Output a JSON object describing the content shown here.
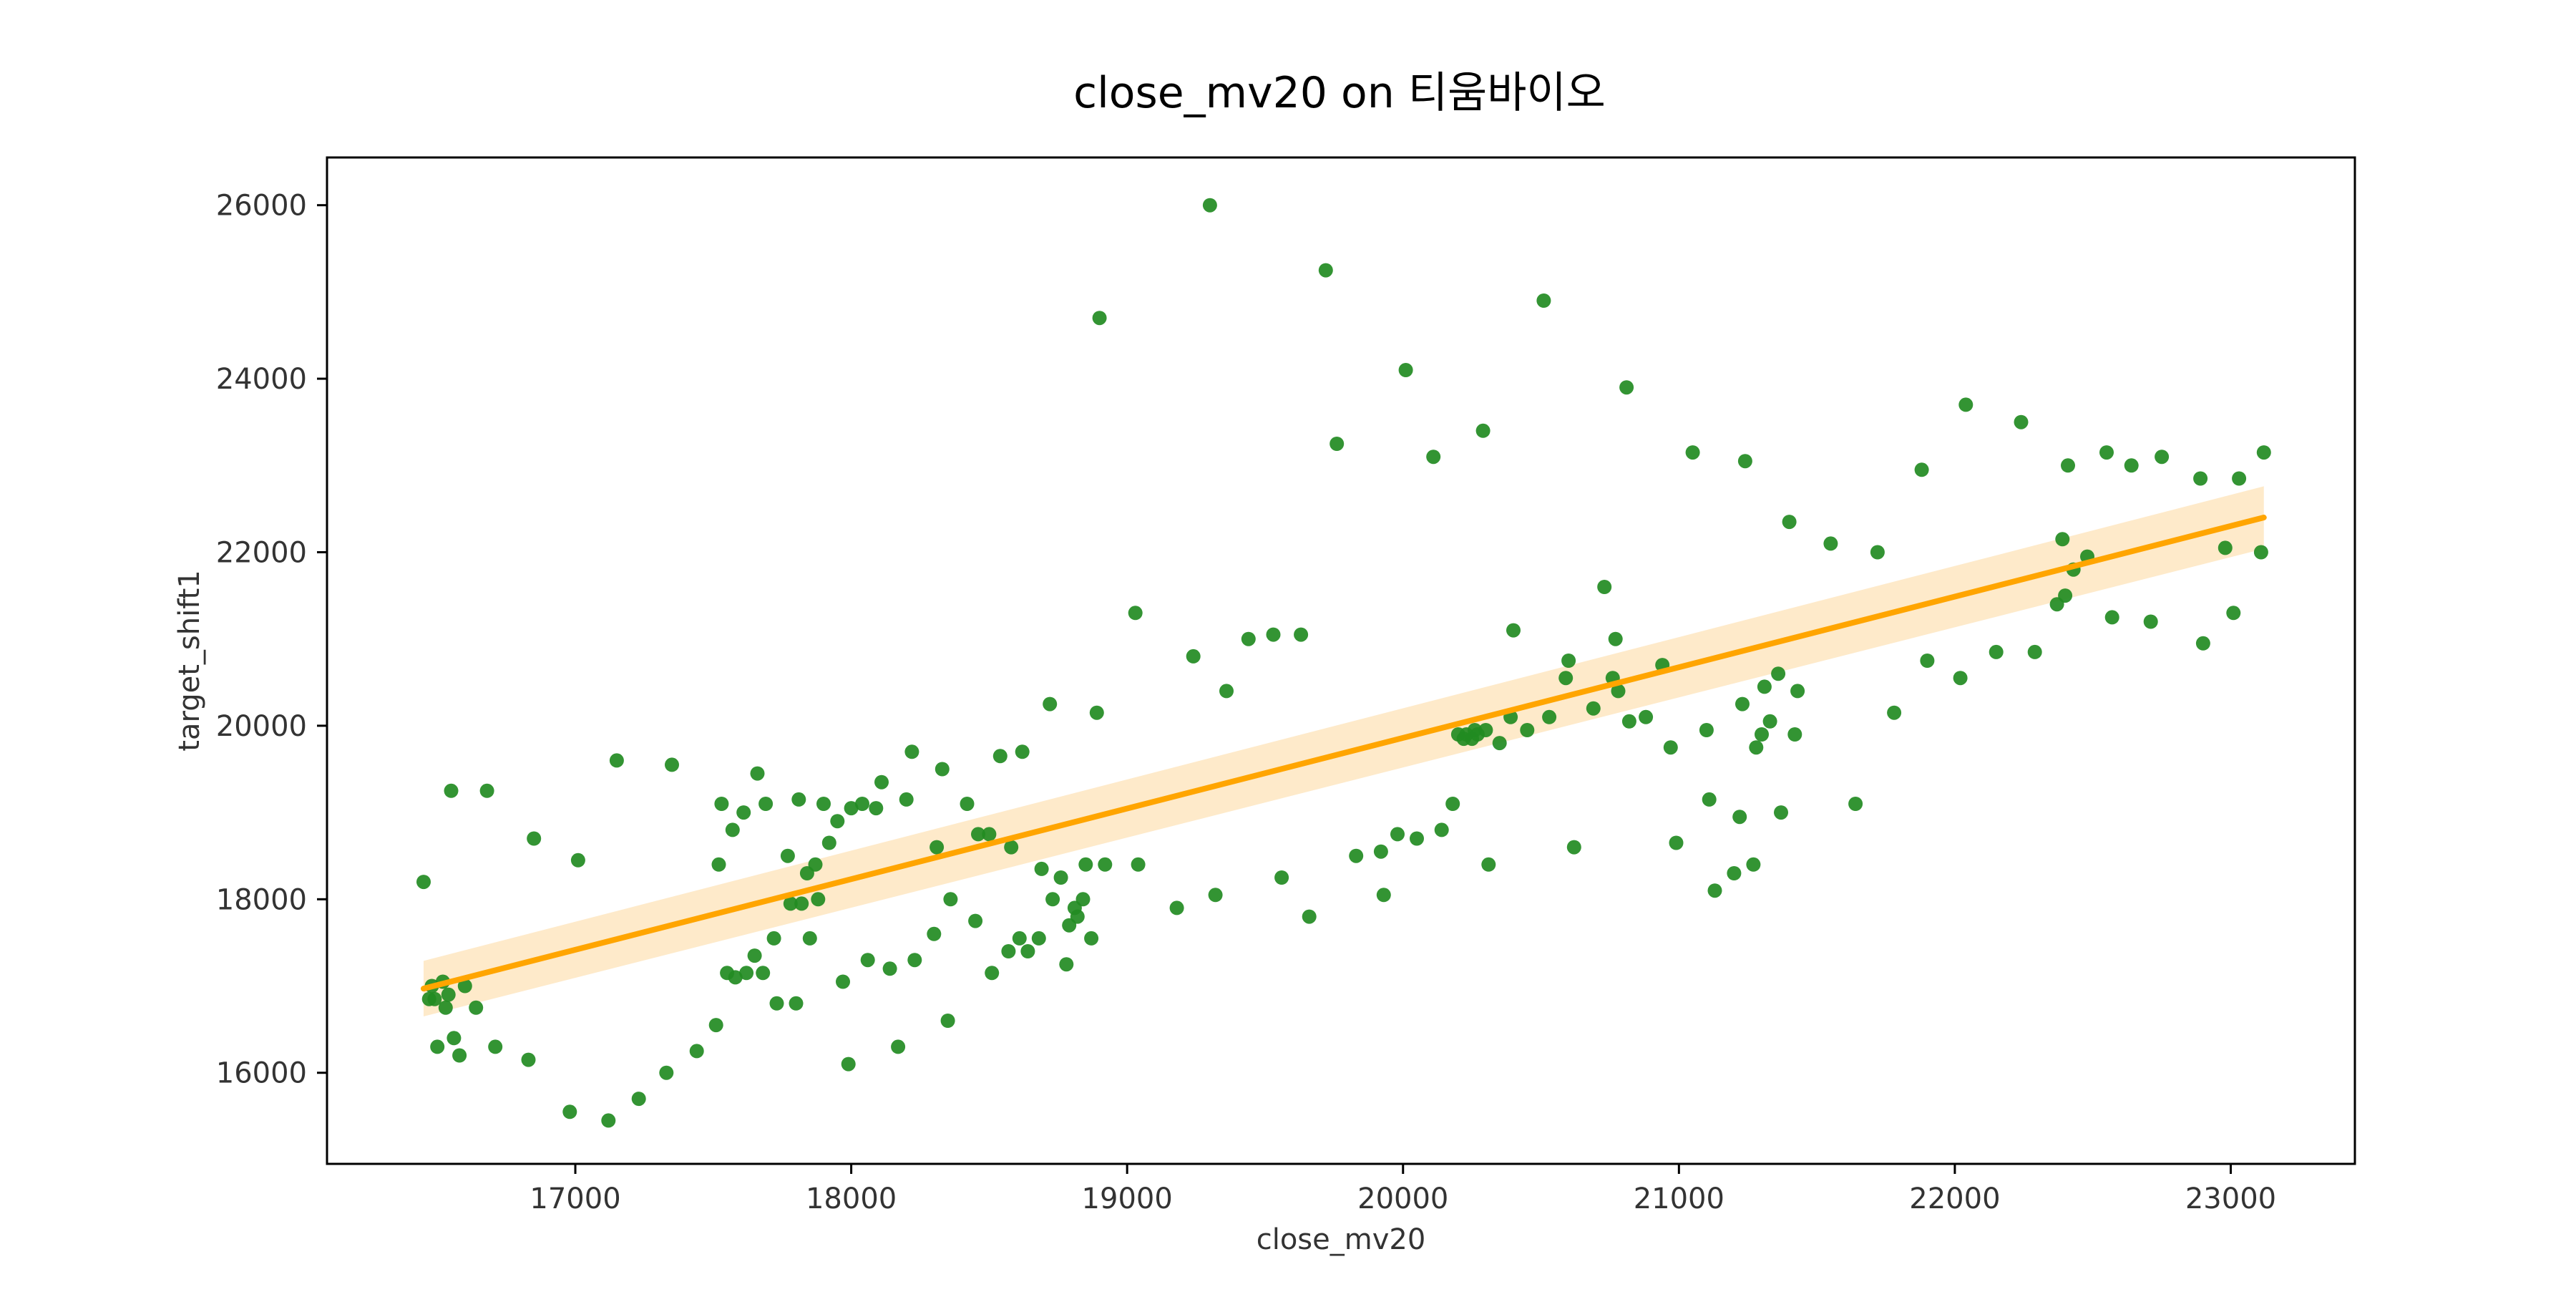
{
  "chart_data": {
    "type": "scatter",
    "title": "close_mv20 on 티움바이오",
    "xlabel": "close_mv20",
    "ylabel": "target_shift1",
    "xlim": [
      16100,
      23450
    ],
    "ylim": [
      14950,
      26550
    ],
    "xticks": [
      17000,
      18000,
      19000,
      20000,
      21000,
      22000,
      23000
    ],
    "yticks": [
      16000,
      18000,
      20000,
      22000,
      24000,
      26000
    ],
    "grid": false,
    "legend": "none",
    "colors": {
      "points": "#228b22",
      "fit_line": "#ffa500",
      "confidence_band": "#fde3b8",
      "frame": "#000000"
    },
    "regression": {
      "x": [
        16450,
        23120
      ],
      "y": [
        16970,
        22400
      ],
      "band_upper": [
        17290,
        22760
      ],
      "band_lower": [
        16650,
        22040
      ]
    },
    "points": [
      [
        16450,
        18200
      ],
      [
        16480,
        17000
      ],
      [
        16470,
        16850
      ],
      [
        16490,
        16850
      ],
      [
        16500,
        16300
      ],
      [
        16520,
        17050
      ],
      [
        16530,
        16750
      ],
      [
        16540,
        16900
      ],
      [
        16550,
        19250
      ],
      [
        16560,
        16400
      ],
      [
        16580,
        16200
      ],
      [
        16600,
        17000
      ],
      [
        16640,
        16750
      ],
      [
        16680,
        19250
      ],
      [
        16710,
        16300
      ],
      [
        16830,
        16150
      ],
      [
        16850,
        18700
      ],
      [
        16980,
        15550
      ],
      [
        17010,
        18450
      ],
      [
        17120,
        15450
      ],
      [
        17150,
        19600
      ],
      [
        17230,
        15700
      ],
      [
        17330,
        16000
      ],
      [
        17350,
        19550
      ],
      [
        17440,
        16250
      ],
      [
        17510,
        16550
      ],
      [
        17520,
        18400
      ],
      [
        17530,
        19100
      ],
      [
        17550,
        17150
      ],
      [
        17570,
        18800
      ],
      [
        17580,
        17100
      ],
      [
        17610,
        19000
      ],
      [
        17620,
        17150
      ],
      [
        17650,
        17350
      ],
      [
        17660,
        19450
      ],
      [
        17680,
        17150
      ],
      [
        17690,
        19100
      ],
      [
        17720,
        17550
      ],
      [
        17730,
        16800
      ],
      [
        17770,
        18500
      ],
      [
        17780,
        17950
      ],
      [
        17800,
        16800
      ],
      [
        17810,
        19150
      ],
      [
        17820,
        17950
      ],
      [
        17840,
        18300
      ],
      [
        17850,
        17550
      ],
      [
        17870,
        18400
      ],
      [
        17880,
        18000
      ],
      [
        17900,
        19100
      ],
      [
        17920,
        18650
      ],
      [
        17950,
        18900
      ],
      [
        17970,
        17050
      ],
      [
        17990,
        16100
      ],
      [
        18000,
        19050
      ],
      [
        18040,
        19100
      ],
      [
        18060,
        17300
      ],
      [
        18090,
        19050
      ],
      [
        18110,
        19350
      ],
      [
        18140,
        17200
      ],
      [
        18170,
        16300
      ],
      [
        18200,
        19150
      ],
      [
        18220,
        19700
      ],
      [
        18230,
        17300
      ],
      [
        18300,
        17600
      ],
      [
        18310,
        18600
      ],
      [
        18330,
        19500
      ],
      [
        18350,
        16600
      ],
      [
        18360,
        18000
      ],
      [
        18420,
        19100
      ],
      [
        18450,
        17750
      ],
      [
        18460,
        18750
      ],
      [
        18500,
        18750
      ],
      [
        18510,
        17150
      ],
      [
        18540,
        19650
      ],
      [
        18570,
        17400
      ],
      [
        18580,
        18600
      ],
      [
        18610,
        17550
      ],
      [
        18620,
        19700
      ],
      [
        18640,
        17400
      ],
      [
        18680,
        17550
      ],
      [
        18690,
        18350
      ],
      [
        18720,
        20250
      ],
      [
        18730,
        18000
      ],
      [
        18760,
        18250
      ],
      [
        18780,
        17250
      ],
      [
        18790,
        17700
      ],
      [
        18810,
        17900
      ],
      [
        18820,
        17800
      ],
      [
        18840,
        18000
      ],
      [
        18850,
        18400
      ],
      [
        18870,
        17550
      ],
      [
        18890,
        20150
      ],
      [
        18900,
        24700
      ],
      [
        18920,
        18400
      ],
      [
        19030,
        21300
      ],
      [
        19040,
        18400
      ],
      [
        19180,
        17900
      ],
      [
        19240,
        20800
      ],
      [
        19300,
        26000
      ],
      [
        19320,
        18050
      ],
      [
        19360,
        20400
      ],
      [
        19440,
        21000
      ],
      [
        19530,
        21050
      ],
      [
        19560,
        18250
      ],
      [
        19630,
        21050
      ],
      [
        19660,
        17800
      ],
      [
        19720,
        25250
      ],
      [
        19760,
        23250
      ],
      [
        19830,
        18500
      ],
      [
        19920,
        18550
      ],
      [
        19930,
        18050
      ],
      [
        19980,
        18750
      ],
      [
        20010,
        24100
      ],
      [
        20050,
        18700
      ],
      [
        20110,
        23100
      ],
      [
        20140,
        18800
      ],
      [
        20180,
        19100
      ],
      [
        20200,
        19900
      ],
      [
        20220,
        19850
      ],
      [
        20230,
        19900
      ],
      [
        20250,
        19850
      ],
      [
        20260,
        19950
      ],
      [
        20270,
        19900
      ],
      [
        20290,
        23400
      ],
      [
        20300,
        19950
      ],
      [
        20310,
        18400
      ],
      [
        20350,
        19800
      ],
      [
        20390,
        20100
      ],
      [
        20400,
        21100
      ],
      [
        20450,
        19950
      ],
      [
        20510,
        24900
      ],
      [
        20530,
        20100
      ],
      [
        20590,
        20550
      ],
      [
        20600,
        20750
      ],
      [
        20620,
        18600
      ],
      [
        20690,
        20200
      ],
      [
        20730,
        21600
      ],
      [
        20760,
        20550
      ],
      [
        20770,
        21000
      ],
      [
        20780,
        20400
      ],
      [
        20810,
        23900
      ],
      [
        20820,
        20050
      ],
      [
        20880,
        20100
      ],
      [
        20940,
        20700
      ],
      [
        20970,
        19750
      ],
      [
        20990,
        18650
      ],
      [
        21050,
        23150
      ],
      [
        21100,
        19950
      ],
      [
        21110,
        19150
      ],
      [
        21130,
        18100
      ],
      [
        21200,
        18300
      ],
      [
        21220,
        18950
      ],
      [
        21230,
        20250
      ],
      [
        21240,
        23050
      ],
      [
        21270,
        18400
      ],
      [
        21280,
        19750
      ],
      [
        21300,
        19900
      ],
      [
        21310,
        20450
      ],
      [
        21330,
        20050
      ],
      [
        21360,
        20600
      ],
      [
        21370,
        19000
      ],
      [
        21400,
        22350
      ],
      [
        21420,
        19900
      ],
      [
        21430,
        20400
      ],
      [
        21550,
        22100
      ],
      [
        21640,
        19100
      ],
      [
        21720,
        22000
      ],
      [
        21780,
        20150
      ],
      [
        21880,
        22950
      ],
      [
        21900,
        20750
      ],
      [
        22020,
        20550
      ],
      [
        22040,
        23700
      ],
      [
        22150,
        20850
      ],
      [
        22240,
        23500
      ],
      [
        22290,
        20850
      ],
      [
        22370,
        21400
      ],
      [
        22390,
        22150
      ],
      [
        22400,
        21500
      ],
      [
        22410,
        23000
      ],
      [
        22430,
        21800
      ],
      [
        22480,
        21950
      ],
      [
        22550,
        23150
      ],
      [
        22570,
        21250
      ],
      [
        22640,
        23000
      ],
      [
        22710,
        21200
      ],
      [
        22750,
        23100
      ],
      [
        22890,
        22850
      ],
      [
        22900,
        20950
      ],
      [
        22980,
        22050
      ],
      [
        23010,
        21300
      ],
      [
        23030,
        22850
      ],
      [
        23110,
        22000
      ],
      [
        23120,
        23150
      ]
    ]
  }
}
